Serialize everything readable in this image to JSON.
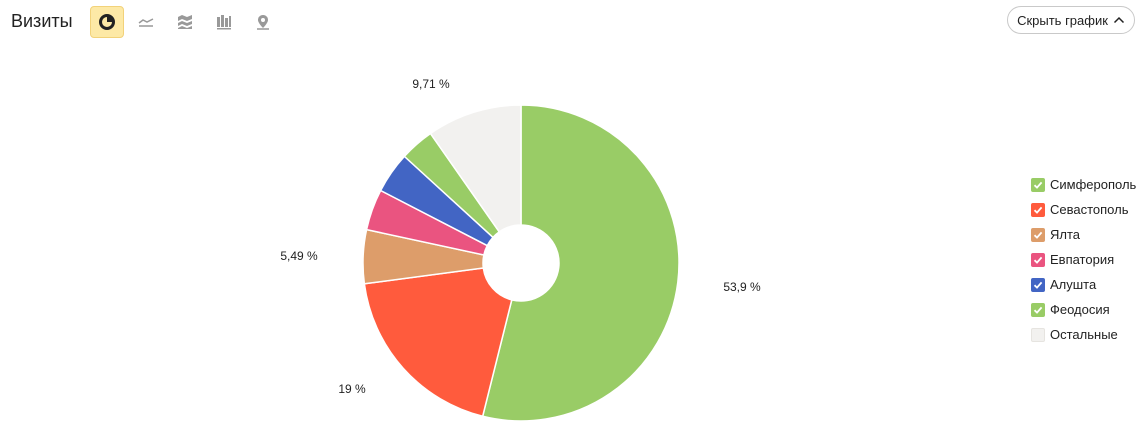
{
  "header": {
    "title": "Визиты",
    "tools": [
      {
        "name": "pie-chart-icon",
        "active": true
      },
      {
        "name": "line-chart-icon",
        "active": false
      },
      {
        "name": "area-chart-icon",
        "active": false
      },
      {
        "name": "bar-chart-icon",
        "active": false
      },
      {
        "name": "map-pin-icon",
        "active": false
      }
    ],
    "hide_chart_label": "Скрыть график"
  },
  "chart_data": {
    "type": "pie",
    "donut": true,
    "title": "",
    "slices": [
      {
        "name": "Симферополь",
        "value": 53.9,
        "color": "#99cc66",
        "label": "53,9 %"
      },
      {
        "name": "Севастополь",
        "value": 19.0,
        "color": "#ff5b3d",
        "label": "19 %"
      },
      {
        "name": "Ялта",
        "value": 5.49,
        "color": "#dd9d6a",
        "label": "5,49 %"
      },
      {
        "name": "Евпатория",
        "value": 4.2,
        "color": "#ea5480",
        "label": ""
      },
      {
        "name": "Алушта",
        "value": 4.2,
        "color": "#4265c4",
        "label": ""
      },
      {
        "name": "Феодосия",
        "value": 3.5,
        "color": "#99cc66",
        "label": ""
      },
      {
        "name": "Остальные",
        "value": 9.71,
        "color": "#f2f1ef",
        "label": "9,71 %"
      }
    ],
    "legend_position": "right"
  }
}
